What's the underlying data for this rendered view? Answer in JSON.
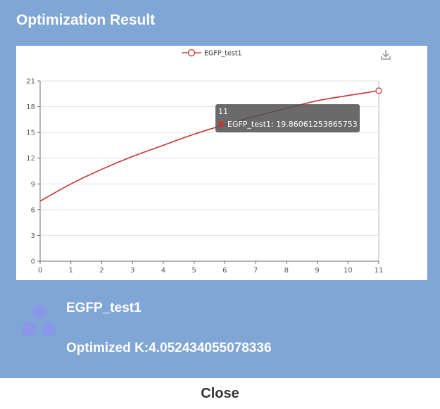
{
  "dialog": {
    "title": "Optimization Result",
    "model_name": "EGFP_test1",
    "optimized_k": "Optimized K:4.052434055078336",
    "close_label": "Close"
  },
  "tooltip": {
    "x_value": "11",
    "series_text": "EGFP_test1: 19.86061253865753"
  },
  "icons": {
    "download": "download-icon",
    "logo": "three-dots-logo"
  },
  "colors": {
    "panel": "#7fa6d4",
    "series": "#c23531",
    "logo_dots": "#8898e6"
  },
  "chart_data": {
    "type": "line",
    "legend": [
      "EGFP_test1"
    ],
    "legend_position": "top-center",
    "x": [
      0,
      1,
      2,
      3,
      4,
      5,
      6,
      7,
      8,
      9,
      10,
      11
    ],
    "series": [
      {
        "name": "EGFP_test1",
        "values": [
          7.0,
          9.0,
          10.7,
          12.2,
          13.5,
          14.8,
          15.9,
          16.9,
          17.8,
          18.7,
          19.3,
          19.86061253865753
        ]
      }
    ],
    "highlight_index": 11,
    "xlim": [
      0,
      11
    ],
    "ylim": [
      0,
      21
    ],
    "x_ticks": [
      0,
      1,
      2,
      3,
      4,
      5,
      6,
      7,
      8,
      9,
      10,
      11
    ],
    "y_ticks": [
      0,
      3,
      6,
      9,
      12,
      15,
      18,
      21
    ],
    "grid": true
  }
}
